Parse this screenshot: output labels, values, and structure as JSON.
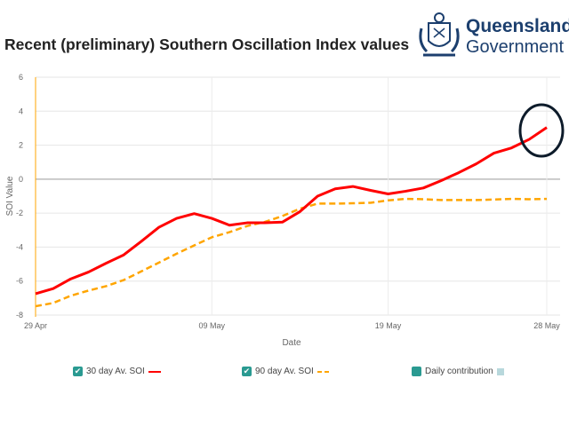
{
  "header": {
    "title": "Recent (preliminary) Southern Oscillation Index values",
    "logo_text": [
      "Queensland",
      "Government"
    ]
  },
  "chart_data": {
    "type": "line",
    "title": "Recent (preliminary) Southern Oscillation Index values",
    "xlabel": "Date",
    "ylabel": "SOI Value",
    "ylim": [
      -8,
      6
    ],
    "yticks": [
      6,
      4,
      2,
      0,
      -2,
      -4,
      -6,
      -8
    ],
    "x_start": "29 Apr",
    "x_end": "28 May",
    "xtick_labels": [
      {
        "day": 0,
        "label": "29 Apr"
      },
      {
        "day": 10,
        "label": "09 May"
      },
      {
        "day": 20,
        "label": "19 May"
      },
      {
        "day": 29,
        "label": "28 May"
      }
    ],
    "grid": true,
    "series": [
      {
        "name": "30 day Av. SOI",
        "color": "#ff0000",
        "style": "solid",
        "values": [
          -6.74,
          -6.44,
          -5.87,
          -5.47,
          -4.95,
          -4.46,
          -3.66,
          -2.83,
          -2.31,
          -2.03,
          -2.31,
          -2.71,
          -2.57,
          -2.57,
          -2.53,
          -1.91,
          -1.0,
          -0.57,
          -0.43,
          -0.66,
          -0.87,
          -0.71,
          -0.52,
          -0.09,
          0.38,
          0.9,
          1.53,
          1.84,
          2.34,
          3.04
        ]
      },
      {
        "name": "90 day Av. SOI",
        "color": "#ffa500",
        "style": "dashed",
        "values": [
          -7.48,
          -7.29,
          -6.86,
          -6.56,
          -6.3,
          -5.94,
          -5.43,
          -4.91,
          -4.39,
          -3.9,
          -3.42,
          -3.12,
          -2.76,
          -2.52,
          -2.17,
          -1.74,
          -1.44,
          -1.44,
          -1.42,
          -1.39,
          -1.25,
          -1.16,
          -1.18,
          -1.23,
          -1.23,
          -1.23,
          -1.2,
          -1.16,
          -1.18,
          -1.16
        ]
      }
    ],
    "legend": {
      "placement": "bottom",
      "items": [
        "30 day Av. SOI",
        "90 day Av. SOI",
        "Daily contribution"
      ],
      "daily_color": "#2a9a91"
    }
  }
}
